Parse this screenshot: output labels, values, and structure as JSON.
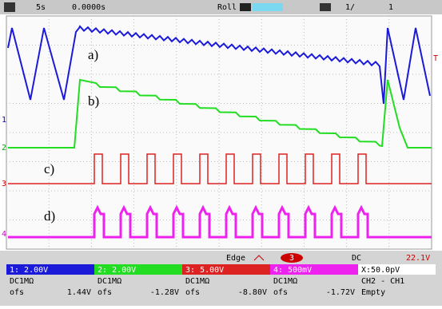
{
  "top_bar": {
    "timebase": "5s",
    "delay": "0.0000s",
    "mode": "Roll",
    "acq_count": "1/",
    "acq_total": "1"
  },
  "traces": {
    "a": "a)",
    "b": "b)",
    "c": "c)",
    "d": "d)"
  },
  "markers": {
    "ch1": "1",
    "ch2": "2",
    "ch3": "3",
    "ch4": "4",
    "trigger": "T"
  },
  "trigger": {
    "type": "Edge",
    "source": "3",
    "coupling": "DC",
    "level": "22.1V"
  },
  "channels": [
    {
      "scale": "1: 2.00V",
      "coupling": "DC1MΩ",
      "ofs_label": "ofs",
      "ofs": "1.44V"
    },
    {
      "scale": "2: 2.00V",
      "coupling": "DC1MΩ",
      "ofs_label": "ofs",
      "ofs": "-1.28V"
    },
    {
      "scale": "3: 5.00V",
      "coupling": "DC1MΩ",
      "ofs_label": "ofs",
      "ofs": "-8.80V"
    },
    {
      "scale": "4: 500mV",
      "coupling": "DC1MΩ",
      "ofs_label": "ofs",
      "ofs": "-1.72V"
    }
  ],
  "math": {
    "scale": "X:50.0pV",
    "expr": "CH2 - CH1",
    "state": "Empty"
  }
}
